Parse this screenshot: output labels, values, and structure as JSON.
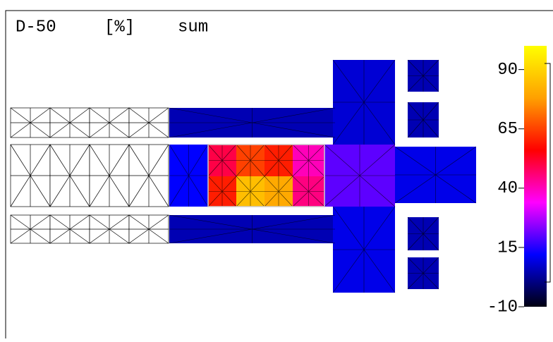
{
  "chart_data": {
    "type": "heatmap",
    "title": "D-50",
    "unit": "[%]",
    "subtitle": "sum",
    "clim": [
      -10,
      100
    ],
    "cticks": [
      90,
      65,
      40,
      15,
      -10
    ],
    "colors": [
      "#000010",
      "#0000ff",
      "#ff00ff",
      "#ff0000",
      "#ffa000",
      "#ffff00"
    ],
    "values": [
      5,
      5,
      12,
      50,
      65,
      60,
      40,
      60,
      85,
      80,
      45,
      8,
      20,
      10,
      5,
      5,
      5,
      5
    ]
  }
}
